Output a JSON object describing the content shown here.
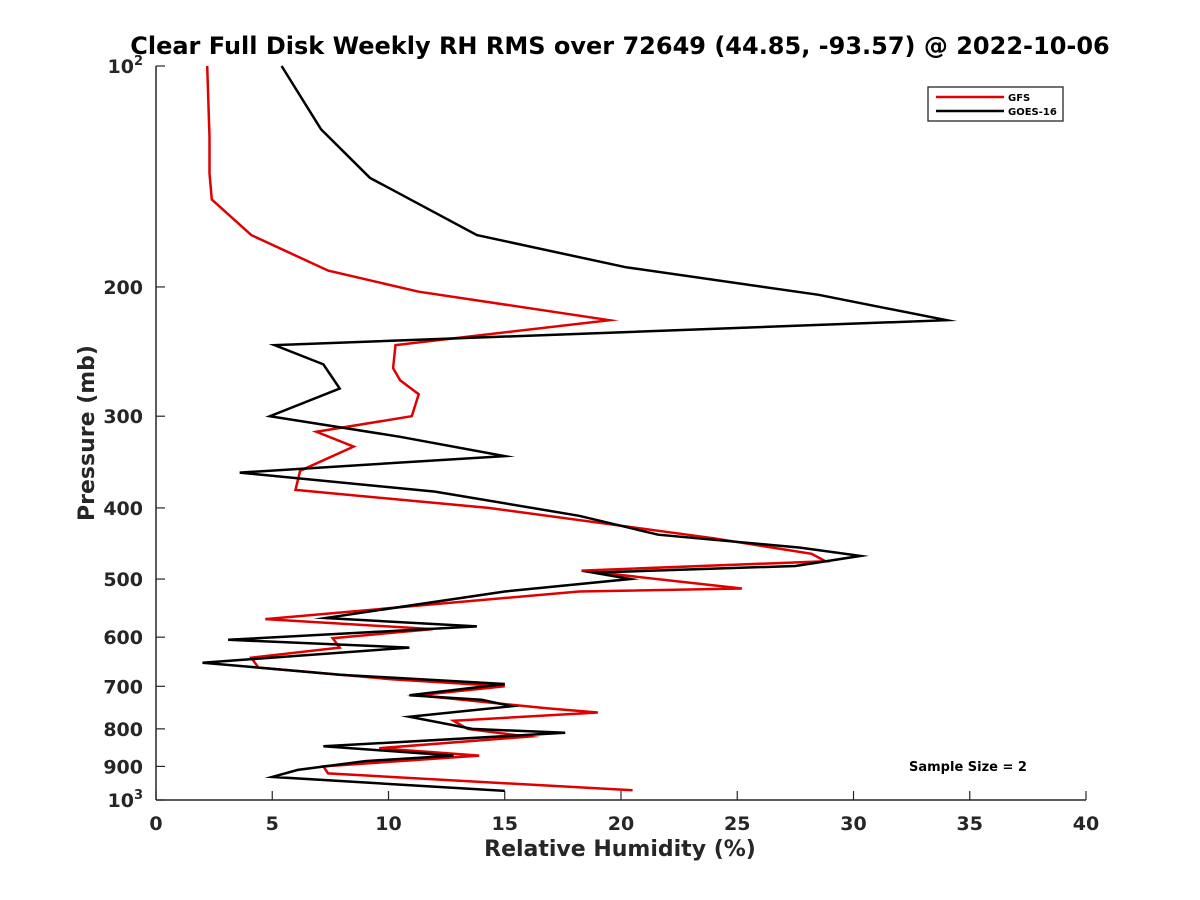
{
  "chart_data": {
    "type": "line",
    "title": "Clear Full Disk Weekly RH RMS over 72649 (44.85, -93.57) @ 2022-10-06",
    "xlabel": "Relative Humidity (%)",
    "ylabel": "Pressure (mb)",
    "xlim": [
      0,
      40
    ],
    "ylim": [
      100,
      1000
    ],
    "yscale": "log",
    "y_reversed": true,
    "xticks": [
      "0",
      "5",
      "10",
      "15",
      "20",
      "25",
      "30",
      "35",
      "40"
    ],
    "yticks": [
      {
        "value": 100,
        "base": "10",
        "exp": "2"
      },
      {
        "value": 200,
        "label": "200"
      },
      {
        "value": 300,
        "label": "300"
      },
      {
        "value": 400,
        "label": "400"
      },
      {
        "value": 500,
        "label": "500"
      },
      {
        "value": 600,
        "label": "600"
      },
      {
        "value": 700,
        "label": "700"
      },
      {
        "value": 800,
        "label": "800"
      },
      {
        "value": 900,
        "label": "900"
      },
      {
        "value": 1000,
        "base": "10",
        "exp": "3"
      }
    ],
    "grid": false,
    "legend_position": "top-right",
    "annotation": "Sample Size = 2",
    "series": [
      {
        "name": "GFS",
        "color": "#e00000",
        "x": [
          2.2,
          2.3,
          2.3,
          2.4,
          4.1,
          7.4,
          11.3,
          19.5,
          10.3,
          10.2,
          10.5,
          11.3,
          11.0,
          6.9,
          8.5,
          6.2,
          6.0,
          14.3,
          24.0,
          28.2,
          28.8,
          18.3,
          25.2,
          18.2,
          4.7,
          11.9,
          7.6,
          7.9,
          4.1,
          4.4,
          10.2,
          15.0,
          11.3,
          16.8,
          19.0,
          12.8,
          13.4,
          16.0,
          9.6,
          13.9,
          7.2,
          7.4,
          20.5
        ],
        "y": [
          100,
          125,
          140,
          152,
          170,
          190,
          203,
          222,
          240,
          258,
          268,
          280,
          300,
          315,
          330,
          356,
          378,
          400,
          440,
          462,
          473,
          487,
          515,
          520,
          567,
          585,
          602,
          620,
          640,
          660,
          685,
          700,
          720,
          750,
          760,
          780,
          800,
          820,
          850,
          870,
          900,
          920,
          970
        ]
      },
      {
        "name": "GOES-16",
        "color": "#000000",
        "x": [
          5.4,
          7.1,
          9.2,
          13.8,
          20.2,
          28.5,
          34.0,
          5.1,
          7.2,
          7.9,
          4.9,
          10.5,
          15.0,
          3.6,
          12.0,
          18.2,
          21.6,
          27.7,
          30.3,
          27.5,
          18.8,
          20.4,
          15.0,
          7.3,
          13.8,
          3.1,
          10.9,
          2.0,
          7.9,
          15.0,
          10.9,
          14.0,
          15.3,
          10.9,
          13.6,
          17.6,
          7.2,
          12.8,
          9.0,
          6.1,
          5.0,
          15.0
        ],
        "y": [
          100,
          122,
          142,
          170,
          188,
          205,
          222,
          240,
          255,
          275,
          300,
          320,
          340,
          358,
          380,
          410,
          435,
          453,
          465,
          480,
          490,
          500,
          520,
          565,
          580,
          605,
          620,
          650,
          675,
          695,
          720,
          730,
          745,
          770,
          800,
          810,
          845,
          870,
          885,
          910,
          930,
          972
        ]
      }
    ]
  }
}
